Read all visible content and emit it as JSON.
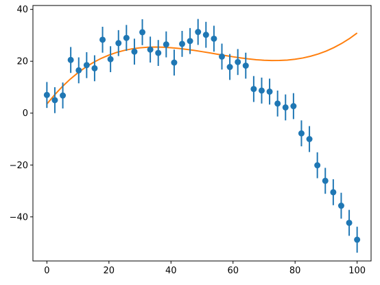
{
  "chart_data": {
    "type": "scatter",
    "title": "",
    "xlabel": "",
    "ylabel": "",
    "xlim": [
      -4.5,
      104.5
    ],
    "ylim": [
      -57.0,
      41.5
    ],
    "xticks": [
      0,
      20,
      40,
      60,
      80,
      100
    ],
    "yticks": [
      -40,
      -20,
      0,
      20,
      40
    ],
    "xtick_labels": [
      "0",
      "20",
      "40",
      "60",
      "80",
      "100"
    ],
    "ytick_labels": [
      "−40",
      "−20",
      "0",
      "20",
      "40"
    ],
    "grid": false,
    "legend": null,
    "series": [
      {
        "kind": "errorbar",
        "color": "#1f77b4",
        "x": [
          0.0,
          2.56,
          5.13,
          7.69,
          10.26,
          12.82,
          15.38,
          17.95,
          20.51,
          23.08,
          25.64,
          28.21,
          30.77,
          33.33,
          35.9,
          38.46,
          41.03,
          43.59,
          46.15,
          48.72,
          51.28,
          53.85,
          56.41,
          58.97,
          61.54,
          64.1,
          66.67,
          69.23,
          71.79,
          74.36,
          76.92,
          79.49,
          82.05,
          84.62,
          87.18,
          89.74,
          92.31,
          94.87,
          97.44,
          100.0
        ],
        "y": [
          7.0,
          5.0,
          6.8,
          20.5,
          16.5,
          18.5,
          17.3,
          28.3,
          20.8,
          27.0,
          29.0,
          23.7,
          31.2,
          24.5,
          23.2,
          26.5,
          19.5,
          26.7,
          27.8,
          31.3,
          30.2,
          28.7,
          21.8,
          17.8,
          19.7,
          18.3,
          9.3,
          8.7,
          8.3,
          3.7,
          2.2,
          2.7,
          -7.8,
          -10.0,
          -20.1,
          -26.1,
          -30.5,
          -35.7,
          -42.3,
          -48.8
        ],
        "yerr": 5.0
      },
      {
        "kind": "line",
        "color": "#ff7f0e",
        "x": [
          0,
          2.5,
          5,
          7.5,
          10,
          12.5,
          15,
          17.5,
          20,
          22.5,
          25,
          27.5,
          30,
          32.5,
          35,
          37.5,
          40,
          42.5,
          45,
          47.5,
          50,
          52.5,
          55,
          57.5,
          60,
          62.5,
          65,
          67.5,
          70,
          72.5,
          75,
          77.5,
          80,
          82.5,
          85,
          87.5,
          90,
          92.5,
          95,
          97.5,
          100
        ],
        "y": [
          3.5,
          7.07,
          10.26,
          13.08,
          15.56,
          17.71,
          19.55,
          21.1,
          22.38,
          23.41,
          24.21,
          24.8,
          25.19,
          25.41,
          25.48,
          25.41,
          25.23,
          24.95,
          24.6,
          24.18,
          23.71,
          23.22,
          22.71,
          22.2,
          21.72,
          21.28,
          20.9,
          20.59,
          20.38,
          20.27,
          20.3,
          20.46,
          20.77,
          21.26,
          21.94,
          22.82,
          23.92,
          25.27,
          26.86,
          28.72,
          30.88
        ]
      }
    ]
  }
}
